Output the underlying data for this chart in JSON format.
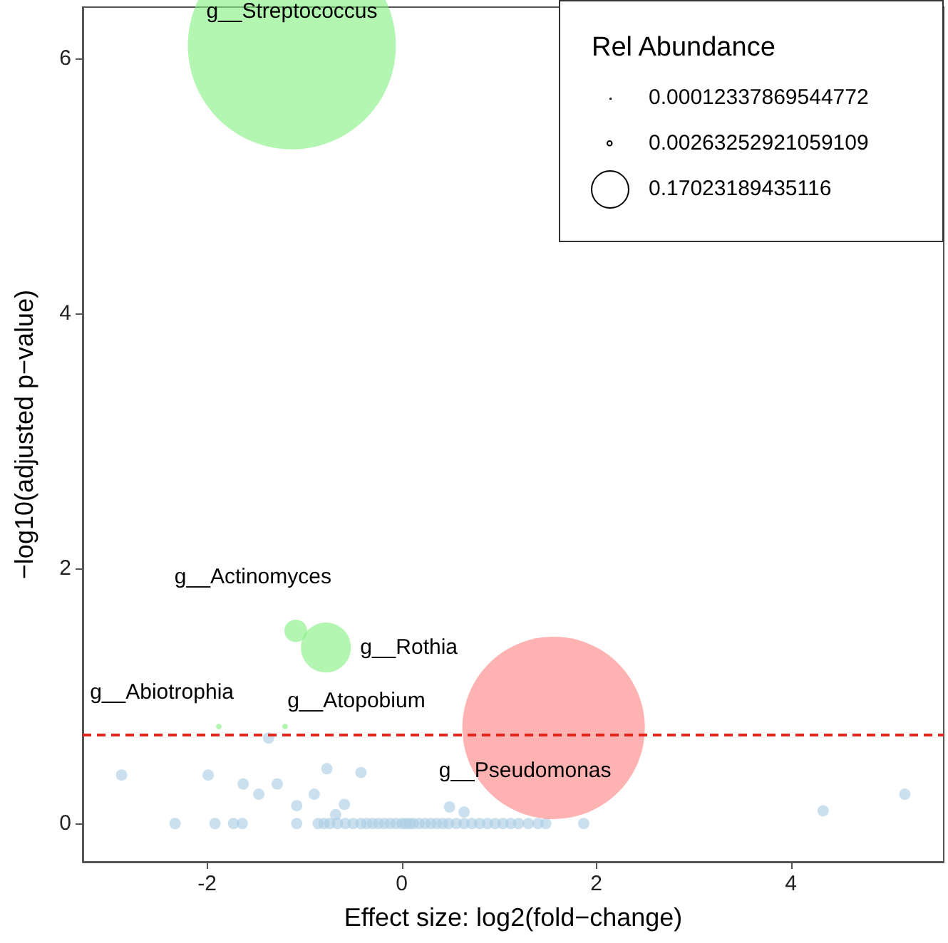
{
  "chart_data": {
    "type": "bubble",
    "xlabel": "Effect size: log2(fold−change)",
    "ylabel": "−log10(adjusted p−value)",
    "legend_title": "Rel Abundance",
    "size_legend": [
      0.00012337869544772,
      0.00263252921059109,
      0.17023189435116
    ],
    "xlim": [
      -3.28,
      5.57
    ],
    "ylim": [
      -0.3,
      6.4
    ],
    "xticks": [
      -2,
      0,
      2,
      4
    ],
    "yticks": [
      0,
      2,
      4,
      6
    ],
    "grid": false,
    "series": [
      {
        "color": "#a9cce3",
        "x": [
          -2.88,
          -1.99,
          -1.63,
          -1.47,
          -1.28,
          -1.37,
          -1.08,
          -0.9,
          -0.77,
          -0.42,
          -0.59,
          -0.68,
          0.49,
          0.64,
          4.33,
          5.17,
          -2.33,
          -1.92,
          -1.73,
          -1.64,
          -1.08,
          -0.86,
          -0.8,
          -0.74,
          -0.66,
          -0.58,
          -0.5,
          -0.42,
          -0.36,
          -0.3,
          -0.24,
          -0.18,
          -0.12,
          -0.06,
          0,
          0.04,
          0.08,
          0.12,
          0.18,
          0.24,
          0.3,
          0.36,
          0.42,
          0.48,
          0.56,
          0.64,
          0.72,
          0.8,
          0.88,
          0.96,
          1.04,
          1.12,
          1.2,
          1.3,
          1.4,
          1.48,
          1.87
        ],
        "values": [
          0.38,
          0.38,
          0.31,
          0.23,
          0.31,
          0.67,
          0.14,
          0.23,
          0.43,
          0.4,
          0.15,
          0.07,
          0.13,
          0.09,
          0.1,
          0.23,
          0,
          0,
          0,
          0,
          0,
          0,
          0,
          0,
          0,
          0,
          0,
          0,
          0,
          0,
          0,
          0,
          0,
          0,
          0,
          0,
          0,
          0,
          0,
          0,
          0,
          0,
          0,
          0,
          0,
          0,
          0,
          0,
          0,
          0,
          0,
          0,
          0,
          0,
          0,
          0,
          0
        ],
        "sizes": [
          0.016,
          0.016,
          0.016,
          0.016,
          0.016,
          0.016,
          0.016,
          0.016,
          0.016,
          0.016,
          0.016,
          0.016,
          0.016,
          0.016,
          0.016,
          0.016,
          0.016,
          0.016,
          0.016,
          0.016,
          0.016,
          0.016,
          0.016,
          0.016,
          0.016,
          0.016,
          0.016,
          0.016,
          0.016,
          0.016,
          0.016,
          0.016,
          0.016,
          0.016,
          0.016,
          0.016,
          0.016,
          0.016,
          0.016,
          0.016,
          0.016,
          0.016,
          0.016,
          0.016,
          0.016,
          0.016,
          0.016,
          0.016,
          0.016,
          0.016,
          0.016,
          0.016,
          0.016,
          0.016,
          0.016,
          0.016,
          0.016
        ]
      },
      {
        "color": "#7ef07e",
        "x": [
          -1.13,
          -1.09,
          -0.78,
          -1.88,
          -1.2
        ],
        "values": [
          6.1,
          1.51,
          1.38,
          0.76,
          0.76
        ],
        "sizes": [
          5.37,
          0.064,
          0.31,
          0.004,
          0.004
        ]
      },
      {
        "color": "#ff7f7f",
        "x": [
          1.56
        ],
        "values": [
          0.75
        ],
        "sizes": [
          4.13
        ]
      }
    ],
    "ref_lines": [
      {
        "axis": "y",
        "value": 0.7,
        "color": "#e0261f",
        "line_style": "dashed"
      }
    ],
    "annotations": [
      {
        "text": "g__Streptococcus",
        "x": -1.13,
        "y": 6.1
      },
      {
        "text": "g__Actinomyces",
        "x": -1.09,
        "y": 1.51
      },
      {
        "text": "g__Rothia",
        "x": -0.78,
        "y": 1.38
      },
      {
        "text": "g__Abiotrophia",
        "x": -1.88,
        "y": 0.76
      },
      {
        "text": "g__Atopobium",
        "x": -1.2,
        "y": 0.76
      },
      {
        "text": "g__Pseudomonas",
        "x": 1.56,
        "y": 0.75
      }
    ]
  }
}
